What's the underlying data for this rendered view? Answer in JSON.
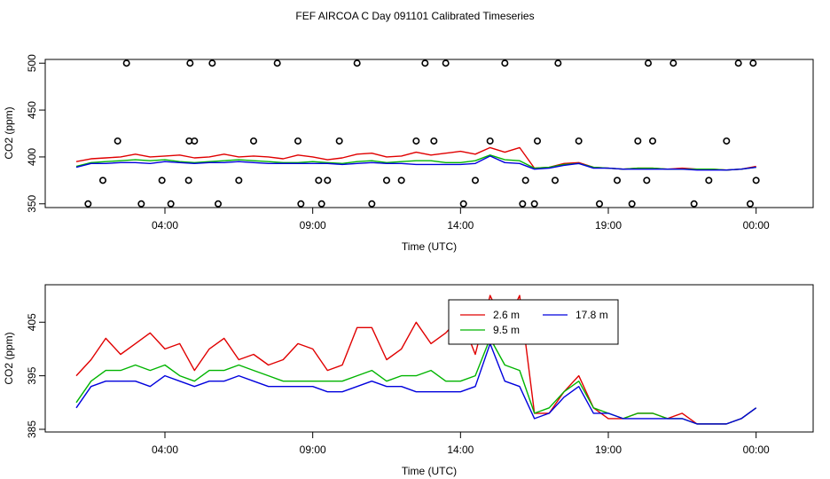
{
  "title": "FEF AIRCOA C  Day 091101  Calibrated Timeseries",
  "colors": {
    "red": "#e00000",
    "green": "#00b400",
    "blue": "#0000dd",
    "black": "#000000"
  },
  "chart_data": [
    {
      "type": "line",
      "xlabel": "Time (UTC)",
      "ylabel": "CO2 (ppm)",
      "xlim": [
        0,
        24
      ],
      "ylim": [
        346,
        504
      ],
      "xticks": [
        3,
        8,
        13,
        18,
        23
      ],
      "xtick_labels": [
        "04:00",
        "09:00",
        "14:00",
        "19:00",
        "00:00"
      ],
      "yticks": [
        350,
        400,
        450,
        500
      ],
      "ytick_labels": [
        "350",
        "400",
        "450",
        "500"
      ],
      "series": [
        {
          "name": "2.6 m",
          "color": "#e00000",
          "x": [
            0.0,
            0.5,
            1.0,
            1.5,
            2.0,
            2.5,
            3.0,
            3.5,
            4.0,
            4.5,
            5.0,
            5.5,
            6.0,
            6.5,
            7.0,
            7.5,
            8.0,
            8.5,
            9.0,
            9.5,
            10.0,
            10.5,
            11.0,
            11.5,
            12.0,
            12.5,
            13.0,
            13.5,
            14.0,
            14.5,
            15.0,
            15.5,
            16.0,
            16.5,
            17.0,
            17.5,
            18.0,
            18.5,
            19.0,
            19.5,
            20.0,
            20.5,
            21.0,
            21.5,
            22.0,
            22.5,
            23.0
          ],
          "values": [
            395,
            398,
            399,
            400,
            403,
            400,
            401,
            402,
            399,
            400,
            403,
            400,
            401,
            400,
            398,
            402,
            400,
            397,
            399,
            403,
            404,
            400,
            401,
            405,
            402,
            404,
            406,
            403,
            410,
            405,
            410,
            388,
            389,
            393,
            394,
            389,
            388,
            387,
            388,
            388,
            387,
            388,
            387,
            387,
            386,
            387,
            390
          ]
        },
        {
          "name": "9.5 m",
          "color": "#00b400",
          "x": [
            0.0,
            0.5,
            1.0,
            1.5,
            2.0,
            2.5,
            3.0,
            3.5,
            4.0,
            4.5,
            5.0,
            5.5,
            6.0,
            6.5,
            7.0,
            7.5,
            8.0,
            8.5,
            9.0,
            9.5,
            10.0,
            10.5,
            11.0,
            11.5,
            12.0,
            12.5,
            13.0,
            13.5,
            14.0,
            14.5,
            15.0,
            15.5,
            16.0,
            16.5,
            17.0,
            17.5,
            18.0,
            18.5,
            19.0,
            19.5,
            20.0,
            20.5,
            21.0,
            21.5,
            22.0,
            22.5,
            23.0
          ],
          "values": [
            390,
            394,
            395,
            396,
            397,
            396,
            397,
            395,
            394,
            395,
            396,
            397,
            396,
            395,
            394,
            394,
            395,
            394,
            393,
            395,
            396,
            394,
            395,
            396,
            396,
            394,
            394,
            396,
            402,
            397,
            396,
            388,
            389,
            392,
            393,
            389,
            388,
            387,
            388,
            388,
            387,
            387,
            387,
            387,
            386,
            387,
            389
          ]
        },
        {
          "name": "17.8 m",
          "color": "#0000dd",
          "x": [
            0.0,
            0.5,
            1.0,
            1.5,
            2.0,
            2.5,
            3.0,
            3.5,
            4.0,
            4.5,
            5.0,
            5.5,
            6.0,
            6.5,
            7.0,
            7.5,
            8.0,
            8.5,
            9.0,
            9.5,
            10.0,
            10.5,
            11.0,
            11.5,
            12.0,
            12.5,
            13.0,
            13.5,
            14.0,
            14.5,
            15.0,
            15.5,
            16.0,
            16.5,
            17.0,
            17.5,
            18.0,
            18.5,
            19.0,
            19.5,
            20.0,
            20.5,
            21.0,
            21.5,
            22.0,
            22.5,
            23.0
          ],
          "values": [
            389,
            393,
            393,
            394,
            394,
            393,
            395,
            394,
            393,
            394,
            394,
            395,
            394,
            393,
            393,
            393,
            393,
            393,
            392,
            393,
            394,
            393,
            393,
            392,
            392,
            392,
            392,
            393,
            401,
            394,
            393,
            387,
            388,
            391,
            393,
            388,
            388,
            387,
            387,
            387,
            387,
            387,
            386,
            386,
            386,
            387,
            389
          ]
        }
      ],
      "markers": {
        "name": "calibration",
        "x": [
          0.4,
          0.9,
          1.4,
          1.7,
          2.2,
          2.9,
          3.2,
          3.8,
          3.82,
          3.85,
          4.0,
          4.6,
          4.8,
          5.5,
          6.0,
          6.8,
          7.5,
          7.6,
          8.2,
          8.3,
          8.5,
          8.9,
          9.5,
          10.0,
          10.5,
          11.0,
          11.5,
          11.8,
          12.1,
          12.5,
          13.1,
          13.5,
          14.0,
          14.5,
          15.1,
          15.2,
          15.5,
          15.6,
          16.2,
          16.3,
          17.0,
          17.7,
          18.3,
          18.8,
          19.0,
          19.3,
          19.35,
          19.5,
          20.2,
          20.9,
          21.4,
          22.0,
          22.4,
          22.8,
          22.9,
          23.0
        ],
        "values": [
          350,
          375,
          417,
          500,
          350,
          375,
          350,
          375,
          417,
          500,
          417,
          500,
          350,
          375,
          417,
          500,
          417,
          350,
          375,
          350,
          375,
          417,
          500,
          350,
          375,
          375,
          417,
          500,
          417,
          500,
          350,
          375,
          417,
          500,
          350,
          375,
          350,
          417,
          375,
          500,
          417,
          350,
          375,
          350,
          417,
          375,
          500,
          417,
          500,
          350,
          375,
          417,
          500,
          350,
          500,
          375
        ]
      }
    },
    {
      "type": "line",
      "xlabel": "Time (UTC)",
      "ylabel": "CO2 (ppm)",
      "xlim": [
        0,
        24
      ],
      "ylim": [
        384.5,
        412
      ],
      "xticks": [
        3,
        8,
        13,
        18,
        23
      ],
      "xtick_labels": [
        "04:00",
        "09:00",
        "14:00",
        "19:00",
        "00:00"
      ],
      "yticks": [
        385,
        395,
        405
      ],
      "ytick_labels": [
        "385",
        "395",
        "405"
      ],
      "legend_position": "top-center",
      "series": [
        {
          "name": "2.6 m",
          "color": "#e00000",
          "x": [
            0.0,
            0.5,
            1.0,
            1.5,
            2.0,
            2.5,
            3.0,
            3.5,
            4.0,
            4.5,
            5.0,
            5.5,
            6.0,
            6.5,
            7.0,
            7.5,
            8.0,
            8.5,
            9.0,
            9.5,
            10.0,
            10.5,
            11.0,
            11.5,
            12.0,
            12.5,
            13.0,
            13.5,
            14.0,
            14.5,
            15.0,
            15.5,
            16.0,
            16.5,
            17.0,
            17.5,
            18.0,
            18.5,
            19.0,
            19.5,
            20.0,
            20.5,
            21.0,
            21.5,
            22.0,
            22.5,
            23.0
          ],
          "values": [
            395,
            398,
            402,
            399,
            401,
            403,
            400,
            401,
            396,
            400,
            402,
            398,
            399,
            397,
            398,
            401,
            400,
            396,
            397,
            404,
            404,
            398,
            400,
            405,
            401,
            403,
            406,
            399,
            410,
            404,
            410,
            388,
            388,
            392,
            395,
            389,
            387,
            387,
            388,
            388,
            387,
            388,
            386,
            386,
            386,
            387,
            389
          ]
        },
        {
          "name": "9.5 m",
          "color": "#00b400",
          "x": [
            0.0,
            0.5,
            1.0,
            1.5,
            2.0,
            2.5,
            3.0,
            3.5,
            4.0,
            4.5,
            5.0,
            5.5,
            6.0,
            6.5,
            7.0,
            7.5,
            8.0,
            8.5,
            9.0,
            9.5,
            10.0,
            10.5,
            11.0,
            11.5,
            12.0,
            12.5,
            13.0,
            13.5,
            14.0,
            14.5,
            15.0,
            15.5,
            16.0,
            16.5,
            17.0,
            17.5,
            18.0,
            18.5,
            19.0,
            19.5,
            20.0,
            20.5,
            21.0,
            21.5,
            22.0,
            22.5,
            23.0
          ],
          "values": [
            390,
            394,
            396,
            396,
            397,
            396,
            397,
            395,
            394,
            396,
            396,
            397,
            396,
            395,
            394,
            394,
            394,
            394,
            394,
            395,
            396,
            394,
            395,
            395,
            396,
            394,
            394,
            395,
            402,
            397,
            396,
            388,
            389,
            392,
            394,
            389,
            388,
            387,
            388,
            388,
            387,
            387,
            386,
            386,
            386,
            387,
            389
          ]
        },
        {
          "name": "17.8 m",
          "color": "#0000dd",
          "x": [
            0.0,
            0.5,
            1.0,
            1.5,
            2.0,
            2.5,
            3.0,
            3.5,
            4.0,
            4.5,
            5.0,
            5.5,
            6.0,
            6.5,
            7.0,
            7.5,
            8.0,
            8.5,
            9.0,
            9.5,
            10.0,
            10.5,
            11.0,
            11.5,
            12.0,
            12.5,
            13.0,
            13.5,
            14.0,
            14.5,
            15.0,
            15.5,
            16.0,
            16.5,
            17.0,
            17.5,
            18.0,
            18.5,
            19.0,
            19.5,
            20.0,
            20.5,
            21.0,
            21.5,
            22.0,
            22.5,
            23.0
          ],
          "values": [
            389,
            393,
            394,
            394,
            394,
            393,
            395,
            394,
            393,
            394,
            394,
            395,
            394,
            393,
            393,
            393,
            393,
            392,
            392,
            393,
            394,
            393,
            393,
            392,
            392,
            392,
            392,
            393,
            401,
            394,
            393,
            387,
            388,
            391,
            393,
            388,
            388,
            387,
            387,
            387,
            387,
            387,
            386,
            386,
            386,
            387,
            389
          ]
        }
      ]
    }
  ]
}
